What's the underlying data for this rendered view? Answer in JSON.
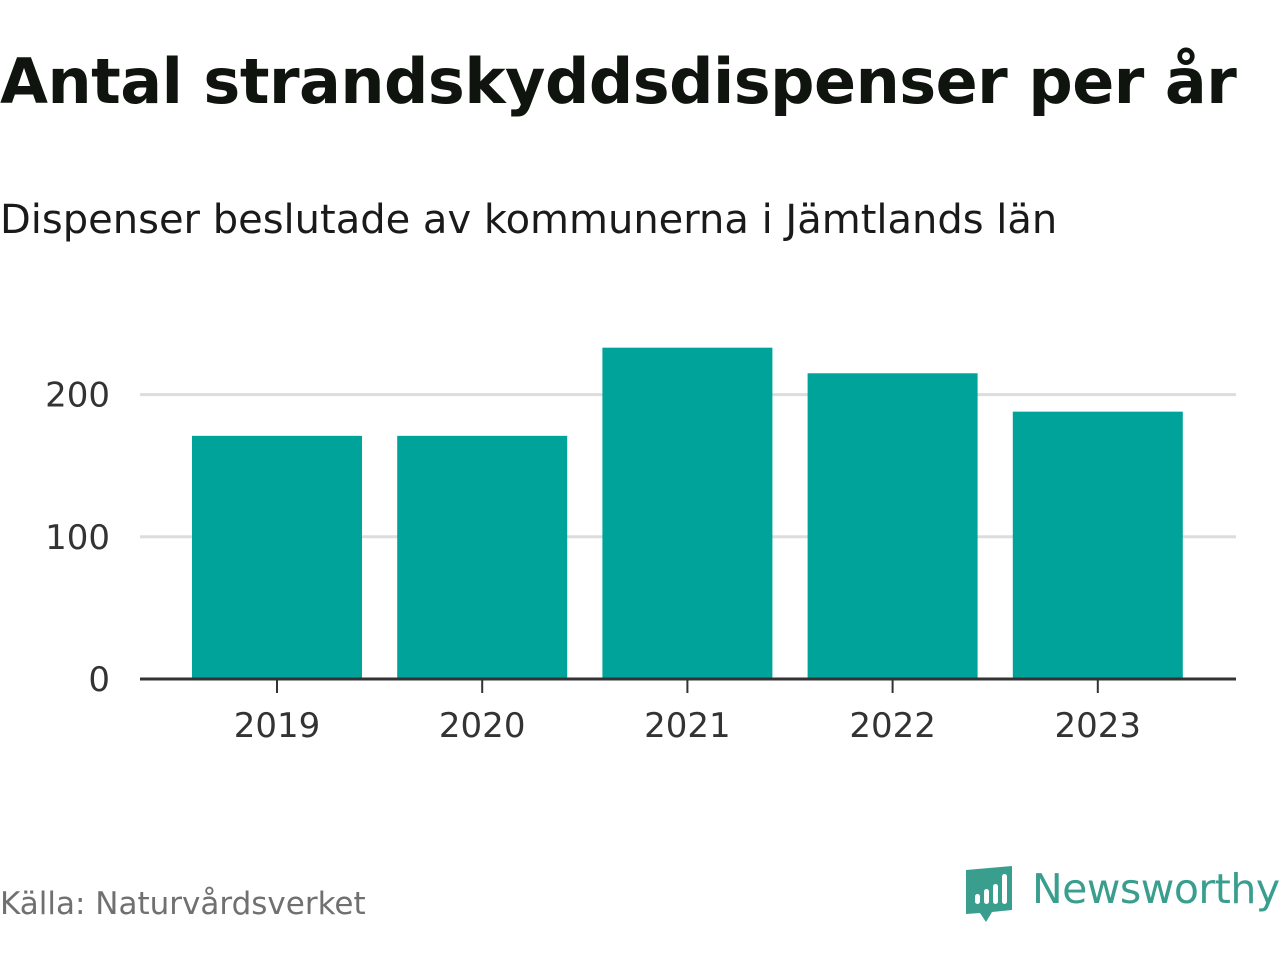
{
  "header": {
    "title": "Antal strandskyddsdispenser per år",
    "subtitle": "Dispenser beslutade av kommunerna i Jämtlands län"
  },
  "footer": {
    "source": "Källa: Naturvårdsverket",
    "brand": "Newsworthy",
    "brand_icon": "newsworthy-logo-icon",
    "brand_color": "#3a9e8f"
  },
  "colors": {
    "bar": "#00a39a",
    "grid": "#dddddd",
    "axis": "#333333"
  },
  "chart_data": {
    "type": "bar",
    "title": "Antal strandskyddsdispenser per år",
    "subtitle": "Dispenser beslutade av kommunerna i Jämtlands län",
    "categories": [
      "2019",
      "2020",
      "2021",
      "2022",
      "2023"
    ],
    "values": [
      171,
      171,
      233,
      215,
      188
    ],
    "xlabel": "",
    "ylabel": "",
    "ylim": [
      0,
      233
    ],
    "yticks": [
      0,
      100,
      200
    ],
    "grid": true
  }
}
